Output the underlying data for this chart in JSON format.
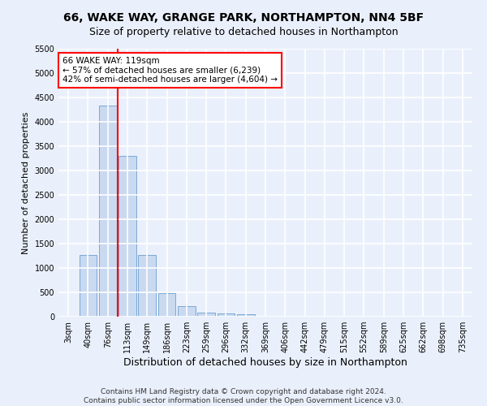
{
  "title1": "66, WAKE WAY, GRANGE PARK, NORTHAMPTON, NN4 5BF",
  "title2": "Size of property relative to detached houses in Northampton",
  "xlabel": "Distribution of detached houses by size in Northampton",
  "ylabel": "Number of detached properties",
  "footnote1": "Contains HM Land Registry data © Crown copyright and database right 2024.",
  "footnote2": "Contains public sector information licensed under the Open Government Licence v3.0.",
  "bar_labels": [
    "3sqm",
    "40sqm",
    "76sqm",
    "113sqm",
    "149sqm",
    "186sqm",
    "223sqm",
    "259sqm",
    "296sqm",
    "332sqm",
    "369sqm",
    "406sqm",
    "442sqm",
    "479sqm",
    "515sqm",
    "552sqm",
    "589sqm",
    "625sqm",
    "662sqm",
    "698sqm",
    "735sqm"
  ],
  "bar_values": [
    0,
    1270,
    4330,
    3300,
    1270,
    490,
    210,
    90,
    60,
    50,
    0,
    0,
    0,
    0,
    0,
    0,
    0,
    0,
    0,
    0,
    0
  ],
  "bar_color": "#c9d9f0",
  "bar_edge_color": "#7aa8d4",
  "vline_color": "red",
  "vline_x_index": 2.5,
  "annotation_line1": "66 WAKE WAY: 119sqm",
  "annotation_line2": "← 57% of detached houses are smaller (6,239)",
  "annotation_line3": "42% of semi-detached houses are larger (4,604) →",
  "annotation_box_color": "white",
  "annotation_box_edge_color": "red",
  "ylim_max": 5500,
  "yticks": [
    0,
    500,
    1000,
    1500,
    2000,
    2500,
    3000,
    3500,
    4000,
    4500,
    5000,
    5500
  ],
  "bg_color": "#eaf0fb",
  "grid_color": "white",
  "title1_fontsize": 10,
  "title2_fontsize": 9,
  "xlabel_fontsize": 9,
  "ylabel_fontsize": 8,
  "tick_fontsize": 7,
  "annotation_fontsize": 7.5,
  "footnote_fontsize": 6.5
}
